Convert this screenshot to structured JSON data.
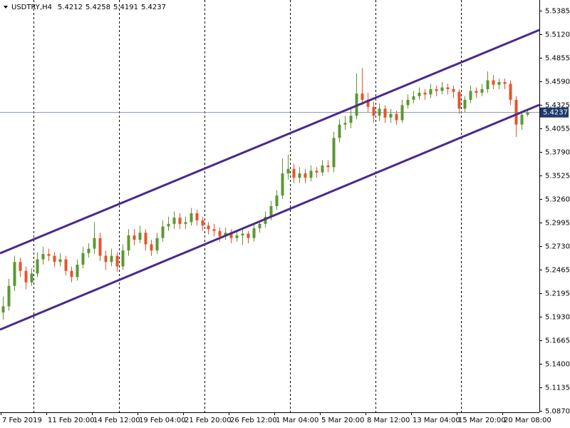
{
  "chart_data": {
    "type": "candlestick",
    "symbol": "USDTRY,H4",
    "header_values": [
      5.4212,
      5.4258,
      5.4191,
      5.4237
    ],
    "current_price": 5.4237,
    "up_color": "#5d9732",
    "down_color": "#e8532a",
    "channel_color": "#4a2a8c",
    "ylim": [
      5.0854,
      5.5506
    ],
    "yticks": [
      5.5385,
      {
        "value": 5.512,
        "label": "5.5120"
      },
      5.4855,
      {
        "value": 5.459,
        "label": "5.4590"
      },
      5.4325,
      5.4055,
      {
        "value": 5.379,
        "label": "5.3790"
      },
      5.3525,
      {
        "value": 5.326,
        "label": "5.3260"
      },
      5.2995,
      {
        "value": 5.273,
        "label": "5.2730"
      },
      5.2465,
      5.2195,
      {
        "value": 5.193,
        "label": "5.1930"
      },
      5.1665,
      {
        "value": 5.14,
        "label": "5.1400"
      },
      5.1135,
      {
        "value": 5.087,
        "label": "5.0870"
      }
    ],
    "categories": [
      "7 Feb 2019",
      "11 Feb 20:00",
      "14 Feb 12:00",
      "19 Feb 04:00",
      "21 Feb 20:00",
      "26 Feb 12:00",
      "1 Mar 04:00",
      "5 Mar 20:00",
      "8 Mar 12:00",
      "13 Mar 04:00",
      "15 Mar 20:00",
      "20 Mar 08:00"
    ],
    "channel_lines": [
      {
        "start": 5.2648,
        "end": 5.5168
      },
      {
        "start": 5.1787,
        "end": 5.4323
      }
    ],
    "candles": [
      [
        5.198,
        5.216,
        5.19,
        5.205
      ],
      [
        5.205,
        5.236,
        5.2,
        5.228
      ],
      [
        5.228,
        5.262,
        5.222,
        5.255
      ],
      [
        5.255,
        5.26,
        5.238,
        5.245
      ],
      [
        5.245,
        5.25,
        5.224,
        5.232
      ],
      [
        5.232,
        5.248,
        5.228,
        5.242
      ],
      [
        5.242,
        5.266,
        5.238,
        5.258
      ],
      [
        5.258,
        5.272,
        5.252,
        5.264
      ],
      [
        5.264,
        5.27,
        5.256,
        5.262
      ],
      [
        5.262,
        5.266,
        5.249,
        5.255
      ],
      [
        5.255,
        5.265,
        5.25,
        5.258
      ],
      [
        5.258,
        5.262,
        5.24,
        5.245
      ],
      [
        5.245,
        5.25,
        5.232,
        5.238
      ],
      [
        5.238,
        5.258,
        5.234,
        5.252
      ],
      [
        5.252,
        5.272,
        5.248,
        5.265
      ],
      [
        5.265,
        5.276,
        5.26,
        5.27
      ],
      [
        5.27,
        5.3,
        5.264,
        5.282
      ],
      [
        5.282,
        5.288,
        5.256,
        5.262
      ],
      [
        5.262,
        5.268,
        5.246,
        5.255
      ],
      [
        5.255,
        5.27,
        5.25,
        5.262
      ],
      [
        5.262,
        5.266,
        5.244,
        5.25
      ],
      [
        5.25,
        5.275,
        5.246,
        5.268
      ],
      [
        5.268,
        5.292,
        5.262,
        5.285
      ],
      [
        5.285,
        5.292,
        5.274,
        5.28
      ],
      [
        5.28,
        5.296,
        5.276,
        5.288
      ],
      [
        5.288,
        5.292,
        5.268,
        5.275
      ],
      [
        5.275,
        5.28,
        5.262,
        5.268
      ],
      [
        5.268,
        5.288,
        5.264,
        5.282
      ],
      [
        5.282,
        5.302,
        5.278,
        5.295
      ],
      [
        5.295,
        5.306,
        5.29,
        5.298
      ],
      [
        5.298,
        5.312,
        5.292,
        5.305
      ],
      [
        5.305,
        5.31,
        5.292,
        5.298
      ],
      [
        5.298,
        5.306,
        5.292,
        5.3
      ],
      [
        5.3,
        5.316,
        5.296,
        5.31
      ],
      [
        5.31,
        5.314,
        5.296,
        5.302
      ],
      [
        5.302,
        5.306,
        5.29,
        5.296
      ],
      [
        5.296,
        5.3,
        5.286,
        5.292
      ],
      [
        5.292,
        5.298,
        5.284,
        5.29
      ],
      [
        5.29,
        5.294,
        5.278,
        5.284
      ],
      [
        5.284,
        5.294,
        5.28,
        5.288
      ],
      [
        5.288,
        5.292,
        5.276,
        5.282
      ],
      [
        5.282,
        5.29,
        5.278,
        5.285
      ],
      [
        5.285,
        5.292,
        5.274,
        5.287
      ],
      [
        5.287,
        5.29,
        5.276,
        5.282
      ],
      [
        5.282,
        5.298,
        5.278,
        5.293
      ],
      [
        5.293,
        5.302,
        5.288,
        5.298
      ],
      [
        5.298,
        5.312,
        5.294,
        5.306
      ],
      [
        5.306,
        5.324,
        5.302,
        5.318
      ],
      [
        5.318,
        5.336,
        5.314,
        5.33
      ],
      [
        5.33,
        5.372,
        5.326,
        5.355
      ],
      [
        5.355,
        5.376,
        5.348,
        5.36
      ],
      [
        5.36,
        5.366,
        5.344,
        5.35
      ],
      [
        5.35,
        5.362,
        5.344,
        5.355
      ],
      [
        5.355,
        5.36,
        5.344,
        5.35
      ],
      [
        5.35,
        5.364,
        5.346,
        5.358
      ],
      [
        5.358,
        5.362,
        5.35,
        5.356
      ],
      [
        5.356,
        5.37,
        5.352,
        5.364
      ],
      [
        5.364,
        5.37,
        5.356,
        5.362
      ],
      [
        5.362,
        5.402,
        5.356,
        5.395
      ],
      [
        5.395,
        5.416,
        5.39,
        5.41
      ],
      [
        5.41,
        5.42,
        5.404,
        5.412
      ],
      [
        5.412,
        5.428,
        5.406,
        5.42
      ],
      [
        5.42,
        5.468,
        5.416,
        5.445
      ],
      [
        5.445,
        5.474,
        5.432,
        5.438
      ],
      [
        5.438,
        5.446,
        5.424,
        5.43
      ],
      [
        5.43,
        5.436,
        5.412,
        5.42
      ],
      [
        5.42,
        5.434,
        5.414,
        5.428
      ],
      [
        5.428,
        5.432,
        5.412,
        5.418
      ],
      [
        5.418,
        5.428,
        5.412,
        5.422
      ],
      [
        5.422,
        5.426,
        5.41,
        5.415
      ],
      [
        5.415,
        5.438,
        5.412,
        5.432
      ],
      [
        5.432,
        5.444,
        5.428,
        5.438
      ],
      [
        5.438,
        5.448,
        5.434,
        5.442
      ],
      [
        5.442,
        5.452,
        5.438,
        5.446
      ],
      [
        5.446,
        5.45,
        5.438,
        5.444
      ],
      [
        5.444,
        5.456,
        5.44,
        5.45
      ],
      [
        5.45,
        5.454,
        5.442,
        5.448
      ],
      [
        5.448,
        5.458,
        5.444,
        5.452
      ],
      [
        5.452,
        5.456,
        5.444,
        5.45
      ],
      [
        5.45,
        5.454,
        5.44,
        5.447
      ],
      [
        5.447,
        5.45,
        5.422,
        5.428
      ],
      [
        5.428,
        5.442,
        5.424,
        5.438
      ],
      [
        5.438,
        5.454,
        5.434,
        5.448
      ],
      [
        5.448,
        5.452,
        5.44,
        5.446
      ],
      [
        5.446,
        5.456,
        5.442,
        5.45
      ],
      [
        5.45,
        5.47,
        5.446,
        5.46
      ],
      [
        5.46,
        5.466,
        5.45,
        5.455
      ],
      [
        5.455,
        5.462,
        5.45,
        5.458
      ],
      [
        5.458,
        5.462,
        5.45,
        5.456
      ],
      [
        5.456,
        5.46,
        5.432,
        5.438
      ],
      [
        5.438,
        5.442,
        5.396,
        5.41
      ],
      [
        5.41,
        5.424,
        5.404,
        5.4212
      ],
      [
        5.4212,
        5.4258,
        5.4191,
        5.4237
      ]
    ]
  }
}
